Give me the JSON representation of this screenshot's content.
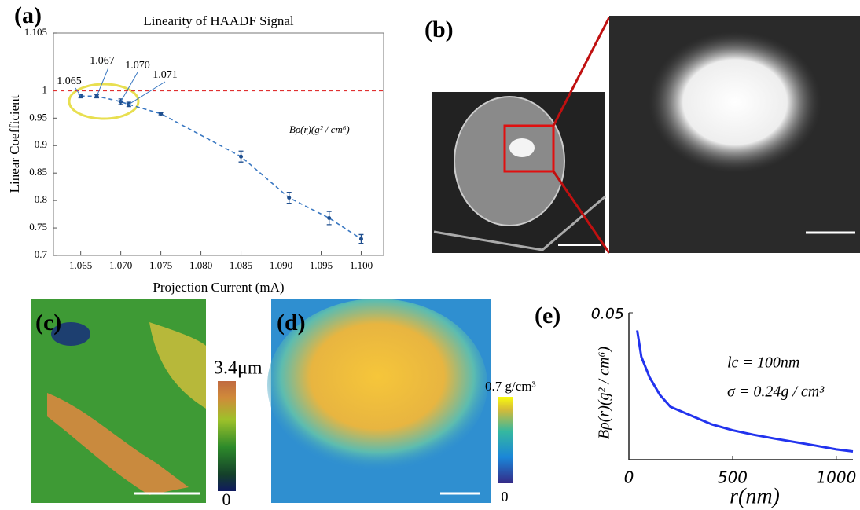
{
  "panels": [
    "(a)",
    "(b)",
    "(c)",
    "(d)",
    "(e)"
  ],
  "colorbars": [
    {
      "max_label": "3.4μm",
      "min_label": "0"
    },
    {
      "max_label": "0.7 g/cm³",
      "min_label": "0"
    }
  ],
  "chart_data": [
    {
      "type": "errorline",
      "title": "Linearity of HAADF Signal",
      "x_label": "Projection Current (mA)",
      "y_label": "Linear Coefficient",
      "x": [
        1.065,
        1.067,
        1.07,
        1.071,
        1.075,
        1.085,
        1.091,
        1.096,
        1.1
      ],
      "values": [
        0.99,
        0.99,
        0.98,
        0.975,
        0.958,
        0.88,
        0.805,
        0.768,
        0.73
      ],
      "errors": [
        0.003,
        0.003,
        0.005,
        0.004,
        0.002,
        0.01,
        0.01,
        0.012,
        0.008
      ],
      "color": "#3a78c2",
      "ref_line": 1,
      "ref_color": "#e03030",
      "annotations": [
        "1.065",
        "1.067",
        "1.070",
        "1.071",
        "Bρ(r)(g² / cm⁶)"
      ],
      "xlim": [
        1.0616,
        1.1028
      ],
      "ylim": [
        0.7,
        1.105
      ],
      "xticks": [
        1.065,
        {
          "value": 1.07,
          "label": "1.070"
        },
        1.075,
        {
          "value": 1.08,
          "label": "1.080"
        },
        1.085,
        {
          "value": 1.09,
          "label": "1.090"
        },
        1.095,
        {
          "value": 1.1,
          "label": "1.100"
        }
      ],
      "yticks": [
        0.7,
        0.75,
        0.8,
        0.85,
        0.9,
        0.95,
        1,
        1.105
      ]
    },
    {
      "type": "line",
      "x_label": "r(nm)",
      "y_label": "Bρ(r)(g² / cm⁶)",
      "x": [
        40,
        60,
        100,
        150,
        200,
        300,
        400,
        500,
        600,
        700,
        800,
        900,
        1000,
        1080
      ],
      "values": [
        0.044,
        0.035,
        0.028,
        0.022,
        0.018,
        0.015,
        0.012,
        0.01,
        0.0085,
        0.0072,
        0.006,
        0.0048,
        0.0035,
        0.0028
      ],
      "color": "#2233ee",
      "annotations": [
        "lc = 100nm",
        "σ = 0.24g / cm³"
      ],
      "xlim": [
        0,
        1080
      ],
      "ylim": [
        0,
        0.05
      ],
      "xticks": [
        0,
        500,
        1000
      ],
      "yticks": [
        0.05
      ]
    }
  ]
}
